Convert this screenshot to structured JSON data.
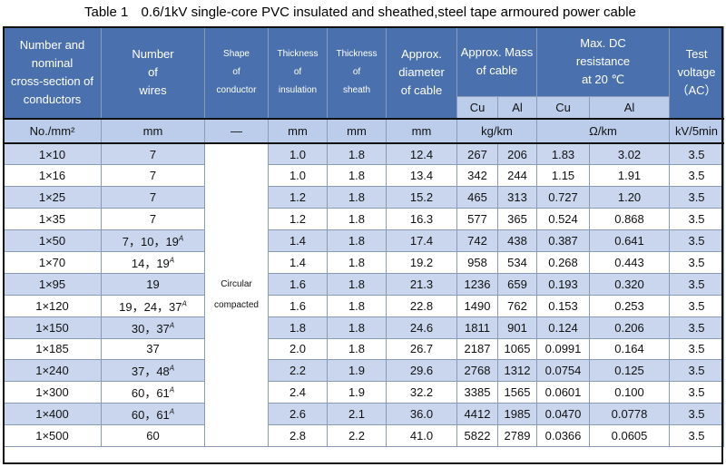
{
  "title": {
    "number": "Table 1",
    "text": "0.6/1kV single-core PVC insulated and sheathed,steel tape armoured power cable"
  },
  "headers": {
    "col1": [
      "Number and",
      "nominal",
      "cross-section of",
      "conductors"
    ],
    "col2": [
      "Number",
      "of",
      "wires"
    ],
    "col3": [
      "Shape",
      "of",
      "conductor"
    ],
    "col4": [
      "Thickness",
      "of",
      "insulation"
    ],
    "col5": [
      "Thickness",
      "of",
      "sheath"
    ],
    "col6": [
      "Approx.",
      "diameter",
      "of cable"
    ],
    "col7": [
      "Approx. Mass",
      "of cable"
    ],
    "col8": [
      "Max. DC",
      "resistance",
      "at 20 ℃"
    ],
    "col9": [
      "Test",
      "voltage",
      "（AC）"
    ],
    "sub": {
      "mass_cu": "Cu",
      "mass_al": "Al",
      "res_cu": "Cu",
      "res_al": "Al"
    }
  },
  "units": {
    "section": "No./mm²",
    "wires": "mm",
    "shape": "—",
    "insulation": "mm",
    "sheath": "mm",
    "diameter": "mm",
    "mass": "kg/km",
    "resistance": "Ω/km",
    "voltage": "kV/5min"
  },
  "shape_value": [
    "Circular",
    "compacted"
  ],
  "rows": [
    {
      "section": "1×10",
      "wires": "7",
      "sup": "",
      "ins": "1.0",
      "sheath": "1.8",
      "dia": "12.4",
      "mcu": "267",
      "mal": "206",
      "rcu": "1.83",
      "ral": "3.02",
      "v": "3.5"
    },
    {
      "section": "1×16",
      "wires": "7",
      "sup": "",
      "ins": "1.0",
      "sheath": "1.8",
      "dia": "13.4",
      "mcu": "342",
      "mal": "244",
      "rcu": "1.15",
      "ral": "1.91",
      "v": "3.5"
    },
    {
      "section": "1×25",
      "wires": "7",
      "sup": "",
      "ins": "1.2",
      "sheath": "1.8",
      "dia": "15.2",
      "mcu": "465",
      "mal": "313",
      "rcu": "0.727",
      "ral": "1.20",
      "v": "3.5"
    },
    {
      "section": "1×35",
      "wires": "7",
      "sup": "",
      "ins": "1.2",
      "sheath": "1.8",
      "dia": "16.3",
      "mcu": "577",
      "mal": "365",
      "rcu": "0.524",
      "ral": "0.868",
      "v": "3.5"
    },
    {
      "section": "1×50",
      "wires": "7，10，19",
      "sup": "A",
      "ins": "1.4",
      "sheath": "1.8",
      "dia": "17.4",
      "mcu": "742",
      "mal": "438",
      "rcu": "0.387",
      "ral": "0.641",
      "v": "3.5"
    },
    {
      "section": "1×70",
      "wires": "14，19",
      "sup": "A",
      "ins": "1.4",
      "sheath": "1.8",
      "dia": "19.2",
      "mcu": "958",
      "mal": "534",
      "rcu": "0.268",
      "ral": "0.443",
      "v": "3.5"
    },
    {
      "section": "1×95",
      "wires": "19",
      "sup": "",
      "ins": "1.6",
      "sheath": "1.8",
      "dia": "21.3",
      "mcu": "1236",
      "mal": "659",
      "rcu": "0.193",
      "ral": "0.320",
      "v": "3.5"
    },
    {
      "section": "1×120",
      "wires": "19，24，37",
      "sup": "A",
      "ins": "1.6",
      "sheath": "1.8",
      "dia": "22.8",
      "mcu": "1490",
      "mal": "762",
      "rcu": "0.153",
      "ral": "0.253",
      "v": "3.5"
    },
    {
      "section": "1×150",
      "wires": "30，37",
      "sup": "A",
      "ins": "1.8",
      "sheath": "1.8",
      "dia": "24.6",
      "mcu": "1811",
      "mal": "901",
      "rcu": "0.124",
      "ral": "0.206",
      "v": "3.5"
    },
    {
      "section": "1×185",
      "wires": "37",
      "sup": "",
      "ins": "2.0",
      "sheath": "1.8",
      "dia": "26.7",
      "mcu": "2187",
      "mal": "1065",
      "rcu": "0.0991",
      "ral": "0.164",
      "v": "3.5"
    },
    {
      "section": "1×240",
      "wires": "37，48",
      "sup": "A",
      "ins": "2.2",
      "sheath": "1.9",
      "dia": "29.6",
      "mcu": "2768",
      "mal": "1312",
      "rcu": "0.0754",
      "ral": "0.125",
      "v": "3.5"
    },
    {
      "section": "1×300",
      "wires": "60，61",
      "sup": "A",
      "ins": "2.4",
      "sheath": "1.9",
      "dia": "32.2",
      "mcu": "3385",
      "mal": "1565",
      "rcu": "0.0601",
      "ral": "0.100",
      "v": "3.5"
    },
    {
      "section": "1×400",
      "wires": "60，61",
      "sup": "A",
      "ins": "2.6",
      "sheath": "2.1",
      "dia": "36.0",
      "mcu": "4412",
      "mal": "1985",
      "rcu": "0.0470",
      "ral": "0.0778",
      "v": "3.5"
    },
    {
      "section": "1×500",
      "wires": "60",
      "sup": "",
      "ins": "2.8",
      "sheath": "2.2",
      "dia": "41.0",
      "mcu": "5822",
      "mal": "2789",
      "rcu": "0.0366",
      "ral": "0.0605",
      "v": "3.5"
    }
  ]
}
